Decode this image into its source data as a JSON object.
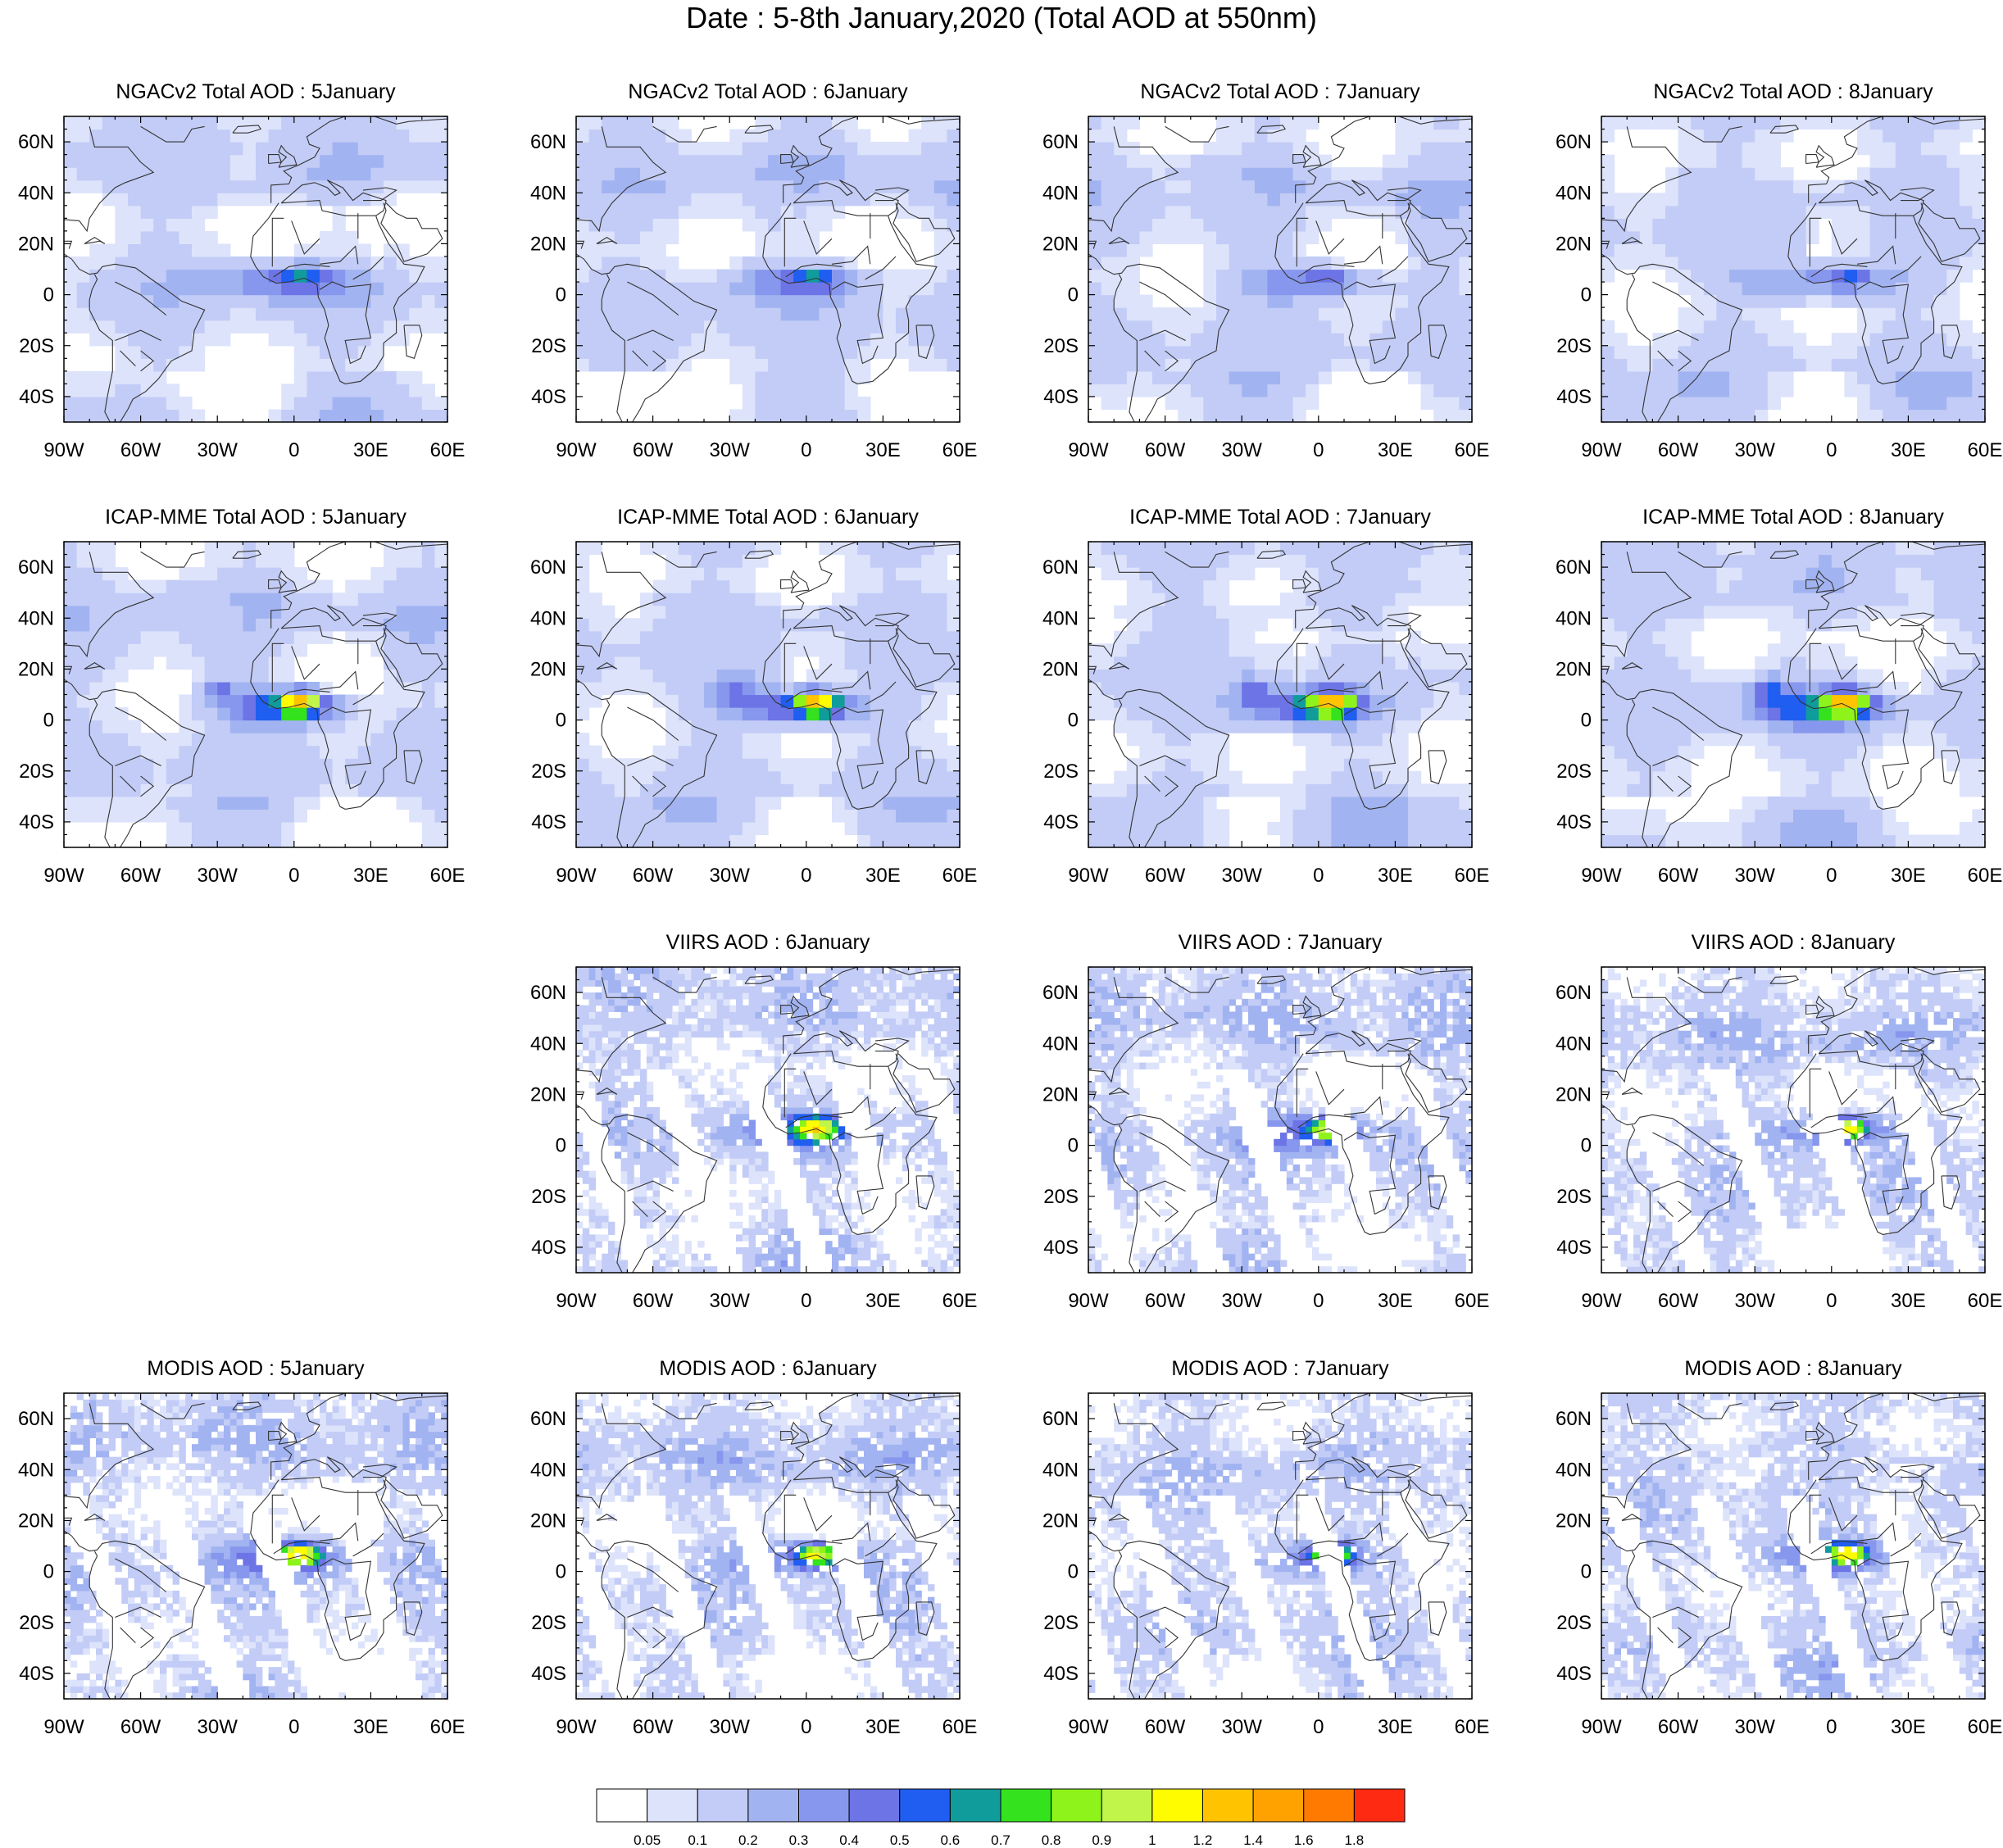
{
  "title": "Date : 5-8th January,2020 (Total AOD at 550nm)",
  "chart_data": {
    "type": "heatmap",
    "lon_range": [
      -90,
      60
    ],
    "lat_range": [
      -50,
      70
    ],
    "lon_ticks": [
      "90W",
      "60W",
      "30W",
      "0",
      "30E",
      "60E"
    ],
    "lat_ticks": [
      "60N",
      "40N",
      "20N",
      "0",
      "20S",
      "40S"
    ],
    "rows": [
      {
        "panels": [
          {
            "title": "NGACv2 Total AOD : 5January",
            "col": 0
          },
          {
            "title": "NGACv2 Total AOD : 6January",
            "col": 1
          },
          {
            "title": "NGACv2 Total AOD : 7January",
            "col": 2
          },
          {
            "title": "NGACv2 Total AOD : 8January",
            "col": 3
          }
        ]
      },
      {
        "panels": [
          {
            "title": "ICAP-MME Total AOD : 5January",
            "col": 0
          },
          {
            "title": "ICAP-MME Total AOD : 6January",
            "col": 1
          },
          {
            "title": "ICAP-MME Total AOD : 7January",
            "col": 2
          },
          {
            "title": "ICAP-MME Total AOD : 8January",
            "col": 3
          }
        ]
      },
      {
        "panels": [
          {
            "title": "VIIRS AOD : 6January",
            "col": 1
          },
          {
            "title": "VIIRS AOD : 7January",
            "col": 2
          },
          {
            "title": "VIIRS AOD : 8January",
            "col": 3
          }
        ]
      },
      {
        "panels": [
          {
            "title": "MODIS AOD : 5January",
            "col": 0
          },
          {
            "title": "MODIS AOD : 6January",
            "col": 1
          },
          {
            "title": "MODIS AOD : 7January",
            "col": 2
          },
          {
            "title": "MODIS AOD : 8January",
            "col": 3
          }
        ]
      }
    ],
    "colorbar": {
      "labels": [
        "0.05",
        "0.1",
        "0.2",
        "0.3",
        "0.4",
        "0.5",
        "0.6",
        "0.7",
        "0.8",
        "0.9",
        "1",
        "1.2",
        "1.4",
        "1.6",
        "1.8"
      ],
      "colors": [
        "#ffffff",
        "#dde3fb",
        "#c2ccf6",
        "#a2b3f1",
        "#8797ee",
        "#6c74e6",
        "#1f5ef0",
        "#119c9c",
        "#34e21d",
        "#8ef31a",
        "#c2f54a",
        "#fffc00",
        "#ffc300",
        "#ffa200",
        "#ff7a00",
        "#ff2a12"
      ]
    }
  }
}
